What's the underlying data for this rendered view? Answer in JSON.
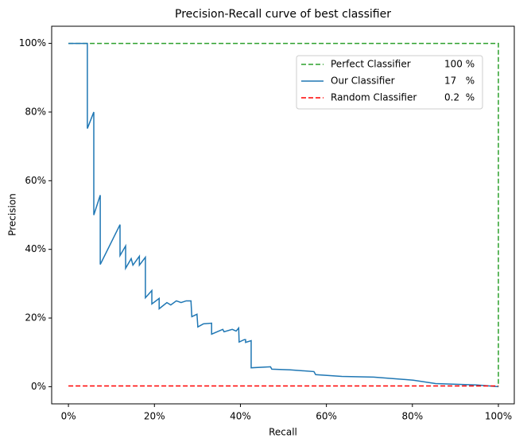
{
  "chart_data": {
    "type": "line",
    "title": "Precision-Recall curve of best classifier",
    "x_label": "Recall",
    "y_label": "Precision",
    "xlim": [
      -3.9,
      103.7
    ],
    "ylim": [
      -5,
      105
    ],
    "xticks": [
      {
        "value": 0,
        "label": "0%"
      },
      {
        "value": 20,
        "label": "20%"
      },
      {
        "value": 40,
        "label": "40%"
      },
      {
        "value": 60,
        "label": "60%"
      },
      {
        "value": 80,
        "label": "80%"
      },
      {
        "value": 100,
        "label": "100%"
      }
    ],
    "yticks": [
      {
        "value": 0,
        "label": "0%"
      },
      {
        "value": 20,
        "label": "20%"
      },
      {
        "value": 40,
        "label": "40%"
      },
      {
        "value": 60,
        "label": "60%"
      },
      {
        "value": 80,
        "label": "80%"
      },
      {
        "value": 100,
        "label": "100%"
      }
    ],
    "grid": false,
    "legend_position": "upper right",
    "series": [
      {
        "name": "Perfect Classifier",
        "legend_value": "100 %",
        "color": "#2ca02c",
        "dashed": true,
        "color_override": "green",
        "x": [
          0,
          100,
          100
        ],
        "values": [
          100,
          100,
          0
        ]
      },
      {
        "name": "Our Classifier",
        "legend_value": "17   %",
        "color": "#1f77b4",
        "dashed": false,
        "x": [
          0,
          4.4,
          4.4,
          5.9,
          5.9,
          7.4,
          7.4,
          12.0,
          12.0,
          13.3,
          13.3,
          14.6,
          15.0,
          16.5,
          16.5,
          17.9,
          17.9,
          19.4,
          19.4,
          21.1,
          21.1,
          22.9,
          23.8,
          25.1,
          26.2,
          27.4,
          28.5,
          28.7,
          29.9,
          30.1,
          31.4,
          33.3,
          33.3,
          35.9,
          36.2,
          38.1,
          39.0,
          39.6,
          39.7,
          40.9,
          41.2,
          41.2,
          42.5,
          42.5,
          47.0,
          47.3,
          51.6,
          57.1,
          57.5,
          63.6,
          71.0,
          80.2,
          85.4,
          95.0,
          100
        ],
        "values": [
          100,
          100,
          75.2,
          80,
          50,
          55.8,
          35.6,
          47.2,
          38.2,
          41,
          34.5,
          37.3,
          35.4,
          38,
          35.4,
          37.7,
          25.9,
          28,
          24.1,
          25.7,
          22.7,
          24.5,
          23.8,
          25,
          24.5,
          25,
          25,
          20.4,
          21.1,
          17.4,
          18.3,
          18.5,
          15.3,
          16.7,
          16,
          16.7,
          16.2,
          17.1,
          13,
          13.7,
          13.7,
          12.9,
          13.4,
          5.5,
          5.8,
          5.1,
          4.9,
          4.4,
          3.5,
          3,
          2.8,
          1.9,
          0.9,
          0.5,
          0
        ]
      },
      {
        "name": "Random Classifier",
        "legend_value": "0.2  %",
        "color": "#ff0000",
        "dashed": true,
        "x": [
          0,
          100
        ],
        "values": [
          0.2,
          0.2
        ]
      }
    ]
  }
}
